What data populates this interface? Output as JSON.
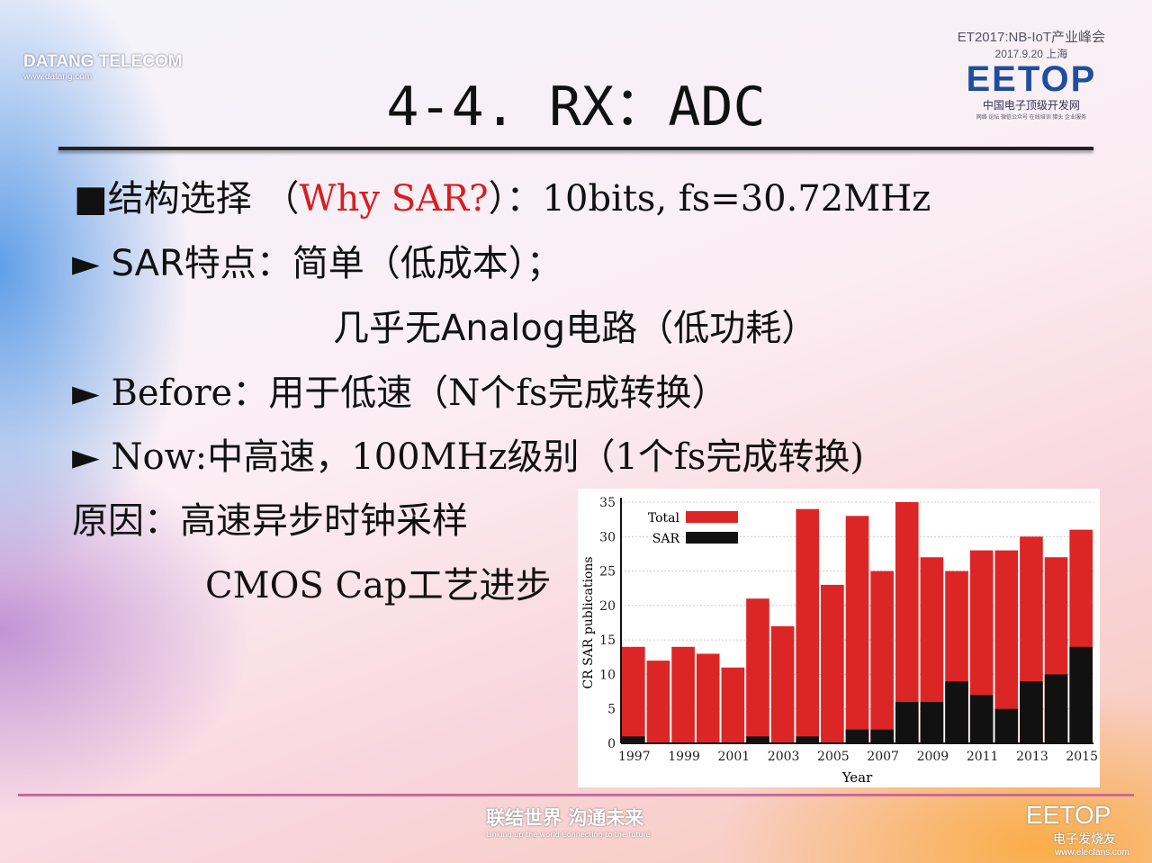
{
  "header": {
    "company": "DATANG TELECOM",
    "company_url": "www.datang.com",
    "title": "4-4. RX：ADC",
    "event_line1": "ET2017:NB-IoT产业峰会",
    "event_line2": "2017.9.20 上海",
    "event_logo": "EETOP",
    "event_logo_cn": "中国电子顶级开发网",
    "event_logo_sub": "网络 论坛 微信公众号 在线培训 猎头 企业服务"
  },
  "body": {
    "line1_prefix": "■结构选择 （",
    "line1_red": "Why SAR?",
    "line1_suffix": "）：10bits, fs=30.72MHz",
    "bullet": "►",
    "line2": "SAR特点：简单（低成本）；",
    "line3": "几乎无Analog电路（低功耗）",
    "line4": "Before：用于低速（N个fs完成转换）",
    "line5": "Now:中高速，100MHz级别（1个fs完成转换)",
    "line6": "原因：高速异步时钟采样",
    "line7": "CMOS Cap工艺进步"
  },
  "footer": {
    "slogan_cn": "联结世界 沟通未来",
    "slogan_en": "Linking up the world  Connecting to the future",
    "watermark": "EETOP",
    "watermark_cn": "电子发烧友",
    "watermark_url": "www.elecfans.com"
  },
  "colors": {
    "total": "#dc2626",
    "sar": "#111111",
    "accent_red": "#d42020"
  },
  "chart_data": {
    "type": "bar",
    "stacked": true,
    "xlabel": "Year",
    "ylabel": "CR SAR publications",
    "ylim": [
      0,
      35
    ],
    "yticks": [
      0,
      5,
      10,
      15,
      20,
      25,
      30,
      35
    ],
    "xticks": [
      "1997",
      "1999",
      "2001",
      "2003",
      "2005",
      "2007",
      "2009",
      "2011",
      "2013",
      "2015"
    ],
    "categories": [
      1997,
      1998,
      1999,
      2000,
      2001,
      2002,
      2003,
      2004,
      2005,
      2006,
      2007,
      2008,
      2009,
      2010,
      2011,
      2012,
      2013,
      2014,
      2015
    ],
    "series": [
      {
        "name": "Total",
        "values": [
          14,
          12,
          14,
          13,
          11,
          21,
          17,
          34,
          23,
          33,
          25,
          35,
          27,
          25,
          28,
          28,
          30,
          27,
          31
        ]
      },
      {
        "name": "SAR",
        "values": [
          1,
          0,
          0,
          0,
          0,
          1,
          0,
          1,
          0,
          2,
          2,
          6,
          6,
          9,
          7,
          5,
          9,
          10,
          14
        ]
      }
    ],
    "grid": true,
    "legend": "top-left"
  }
}
